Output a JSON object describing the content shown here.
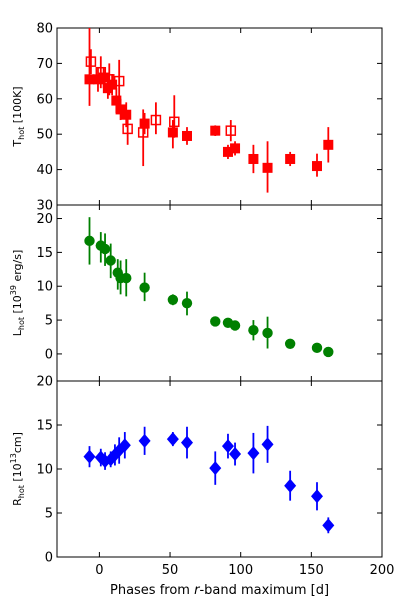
{
  "chart_data": [
    {
      "type": "scatter",
      "ylabel": "T_hot [100K]",
      "ylabel_parts": {
        "main": "T",
        "sub": "hot",
        "unit": " [100K]"
      },
      "xlim": [
        -30,
        200
      ],
      "ylim": [
        30,
        80
      ],
      "yticks": [
        30,
        40,
        50,
        60,
        70,
        80
      ],
      "color": "#ff0000",
      "series": [
        {
          "marker": "square-filled",
          "points": [
            {
              "x": -7,
              "y": 65.5,
              "lo": 58,
              "hi": 80
            },
            {
              "x": -1,
              "y": 65.5,
              "lo": 62,
              "hi": 69
            },
            {
              "x": 3,
              "y": 66,
              "lo": 63,
              "hi": 69
            },
            {
              "x": 6,
              "y": 63,
              "lo": 60,
              "hi": 66
            },
            {
              "x": 9,
              "y": 64,
              "lo": 61,
              "hi": 67
            },
            {
              "x": 12,
              "y": 59.5,
              "lo": 56,
              "hi": 63
            },
            {
              "x": 15,
              "y": 57,
              "lo": 54,
              "hi": 60
            },
            {
              "x": 19,
              "y": 55.5,
              "lo": 52,
              "hi": 59
            },
            {
              "x": 32,
              "y": 53,
              "lo": 50,
              "hi": 56
            },
            {
              "x": 52,
              "y": 50.5,
              "lo": 46,
              "hi": 54
            },
            {
              "x": 62,
              "y": 49.5,
              "lo": 47,
              "hi": 52
            },
            {
              "x": 82,
              "y": 51,
              "lo": 49.5,
              "hi": 52.5
            },
            {
              "x": 91,
              "y": 45,
              "lo": 43,
              "hi": 47
            },
            {
              "x": 96,
              "y": 46,
              "lo": 44,
              "hi": 48
            },
            {
              "x": 109,
              "y": 43,
              "lo": 39,
              "hi": 47
            },
            {
              "x": 119,
              "y": 40.5,
              "lo": 33.5,
              "hi": 48
            },
            {
              "x": 135,
              "y": 43,
              "lo": 41,
              "hi": 45
            },
            {
              "x": 154,
              "y": 41,
              "lo": 38,
              "hi": 44.5
            },
            {
              "x": 162,
              "y": 47,
              "lo": 42,
              "hi": 52
            }
          ]
        },
        {
          "marker": "square-open",
          "points": [
            {
              "x": -6,
              "y": 70.5,
              "lo": 67,
              "hi": 74
            },
            {
              "x": 1,
              "y": 67.5,
              "lo": 63,
              "hi": 72
            },
            {
              "x": 7,
              "y": 65.5,
              "lo": 61,
              "hi": 70
            },
            {
              "x": 14,
              "y": 65,
              "lo": 60,
              "hi": 71
            },
            {
              "x": 20,
              "y": 51.5,
              "lo": 47,
              "hi": 56
            },
            {
              "x": 31,
              "y": 50.5,
              "lo": 41,
              "hi": 57
            },
            {
              "x": 40,
              "y": 54,
              "lo": 50,
              "hi": 59
            },
            {
              "x": 53,
              "y": 53.5,
              "lo": 49,
              "hi": 61
            },
            {
              "x": 93,
              "y": 51,
              "lo": 48,
              "hi": 54
            }
          ]
        }
      ]
    },
    {
      "type": "scatter",
      "ylabel": "L_hot [10^39 erg/s]",
      "ylabel_parts": {
        "main": "L",
        "sub": "hot",
        "unit_pre": " [10",
        "sup": "39",
        "unit_post": " erg/s]"
      },
      "xlim": [
        -30,
        200
      ],
      "ylim": [
        -4,
        22
      ],
      "yticks": [
        0,
        5,
        10,
        15,
        20
      ],
      "color": "#008000",
      "series": [
        {
          "marker": "circle",
          "points": [
            {
              "x": -7,
              "y": 16.7,
              "lo": 13.2,
              "hi": 20.2
            },
            {
              "x": 1,
              "y": 16,
              "lo": 13.5,
              "hi": 18
            },
            {
              "x": 4,
              "y": 15.5,
              "lo": 13,
              "hi": 17.8
            },
            {
              "x": 8,
              "y": 13.8,
              "lo": 11.2,
              "hi": 16.3
            },
            {
              "x": 13,
              "y": 12,
              "lo": 9.5,
              "hi": 14
            },
            {
              "x": 15,
              "y": 11.2,
              "lo": 8.8,
              "hi": 13.8
            },
            {
              "x": 19,
              "y": 11.2,
              "lo": 8.5,
              "hi": 14
            },
            {
              "x": 32,
              "y": 9.8,
              "lo": 7.8,
              "hi": 12
            },
            {
              "x": 52,
              "y": 8,
              "lo": 7.2,
              "hi": 8.8
            },
            {
              "x": 62,
              "y": 7.5,
              "lo": 5.7,
              "hi": 9.2
            },
            {
              "x": 82,
              "y": 4.8,
              "lo": 4.2,
              "hi": 5.4
            },
            {
              "x": 91,
              "y": 4.6,
              "lo": 3.9,
              "hi": 5.3
            },
            {
              "x": 96,
              "y": 4.2,
              "lo": 3.6,
              "hi": 4.8
            },
            {
              "x": 109,
              "y": 3.5,
              "lo": 2,
              "hi": 5
            },
            {
              "x": 119,
              "y": 3.1,
              "lo": 0.8,
              "hi": 5.5
            },
            {
              "x": 135,
              "y": 1.5,
              "lo": 1.1,
              "hi": 1.9
            },
            {
              "x": 154,
              "y": 0.9,
              "lo": 0.6,
              "hi": 1.2
            },
            {
              "x": 162,
              "y": 0.3,
              "lo": 0.1,
              "hi": 0.5
            }
          ]
        }
      ]
    },
    {
      "type": "scatter",
      "ylabel": "R_hot [10^13 cm]",
      "ylabel_parts": {
        "main": "R",
        "sub": "hot",
        "unit_pre": " [10",
        "sup": "13",
        "unit_post": "cm]"
      },
      "xlim": [
        -30,
        200
      ],
      "ylim": [
        0,
        20
      ],
      "yticks": [
        0,
        5,
        10,
        15,
        20
      ],
      "xticks": [
        0,
        50,
        100,
        150,
        200
      ],
      "xlabel": "Phases from r-band maximum [d]",
      "xlabel_parts": {
        "pre": "Phases from ",
        "italic": "r",
        "post": "-band maximum [d]"
      },
      "color": "#0000ff",
      "series": [
        {
          "marker": "diamond",
          "points": [
            {
              "x": -7,
              "y": 11.4,
              "lo": 10.2,
              "hi": 12.6
            },
            {
              "x": 1,
              "y": 11.3,
              "lo": 10.3,
              "hi": 12.3
            },
            {
              "x": 4,
              "y": 10.9,
              "lo": 9.9,
              "hi": 11.9
            },
            {
              "x": 8,
              "y": 11.1,
              "lo": 10.2,
              "hi": 12
            },
            {
              "x": 11,
              "y": 11.6,
              "lo": 10.4,
              "hi": 12.8
            },
            {
              "x": 14,
              "y": 12.1,
              "lo": 10.6,
              "hi": 13.6
            },
            {
              "x": 18,
              "y": 12.7,
              "lo": 11.2,
              "hi": 14.2
            },
            {
              "x": 32,
              "y": 13.2,
              "lo": 11.6,
              "hi": 14.8
            },
            {
              "x": 52,
              "y": 13.4,
              "lo": 12.6,
              "hi": 14.2
            },
            {
              "x": 62,
              "y": 13,
              "lo": 11.2,
              "hi": 14.8
            },
            {
              "x": 82,
              "y": 10.1,
              "lo": 8.2,
              "hi": 12
            },
            {
              "x": 91,
              "y": 12.6,
              "lo": 11.2,
              "hi": 14
            },
            {
              "x": 96,
              "y": 11.7,
              "lo": 10.4,
              "hi": 13
            },
            {
              "x": 109,
              "y": 11.8,
              "lo": 9.5,
              "hi": 14.1
            },
            {
              "x": 119,
              "y": 12.8,
              "lo": 10.7,
              "hi": 14.9
            },
            {
              "x": 135,
              "y": 8.1,
              "lo": 6.4,
              "hi": 9.8
            },
            {
              "x": 154,
              "y": 6.9,
              "lo": 5.3,
              "hi": 8.5
            },
            {
              "x": 162,
              "y": 3.6,
              "lo": 2.7,
              "hi": 4.5
            }
          ]
        }
      ]
    }
  ]
}
